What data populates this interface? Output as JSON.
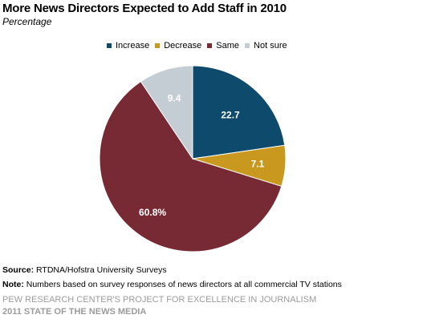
{
  "title": "More News Directors Expected to Add Staff in 2010",
  "subtitle": "Percentage",
  "chart_data": {
    "type": "pie",
    "slices": [
      {
        "name": "Increase",
        "value": 22.7,
        "label": "22.7",
        "color": "#0d4a6b"
      },
      {
        "name": "Decrease",
        "value": 7.1,
        "label": "7.1",
        "color": "#c9981e"
      },
      {
        "name": "Same",
        "value": 60.8,
        "label": "60.8%",
        "color": "#772a33"
      },
      {
        "name": "Not sure",
        "value": 9.4,
        "label": "9.4",
        "color": "#c4cdd3"
      }
    ],
    "start_angle_deg": 0,
    "direction": "clockwise",
    "legend_position": "top"
  },
  "footer": {
    "source_label": "Source:",
    "source_text": " RTDNA/Hofstra University Surveys",
    "note_label": "Note:",
    "note_text": " Numbers based on survey responses of news directors at all commercial TV stations"
  },
  "credits": {
    "line1": "PEW RESEARCH CENTER'S PROJECT FOR EXCELLENCE IN JOURNALISM",
    "line2": "2011 STATE OF THE NEWS MEDIA"
  }
}
